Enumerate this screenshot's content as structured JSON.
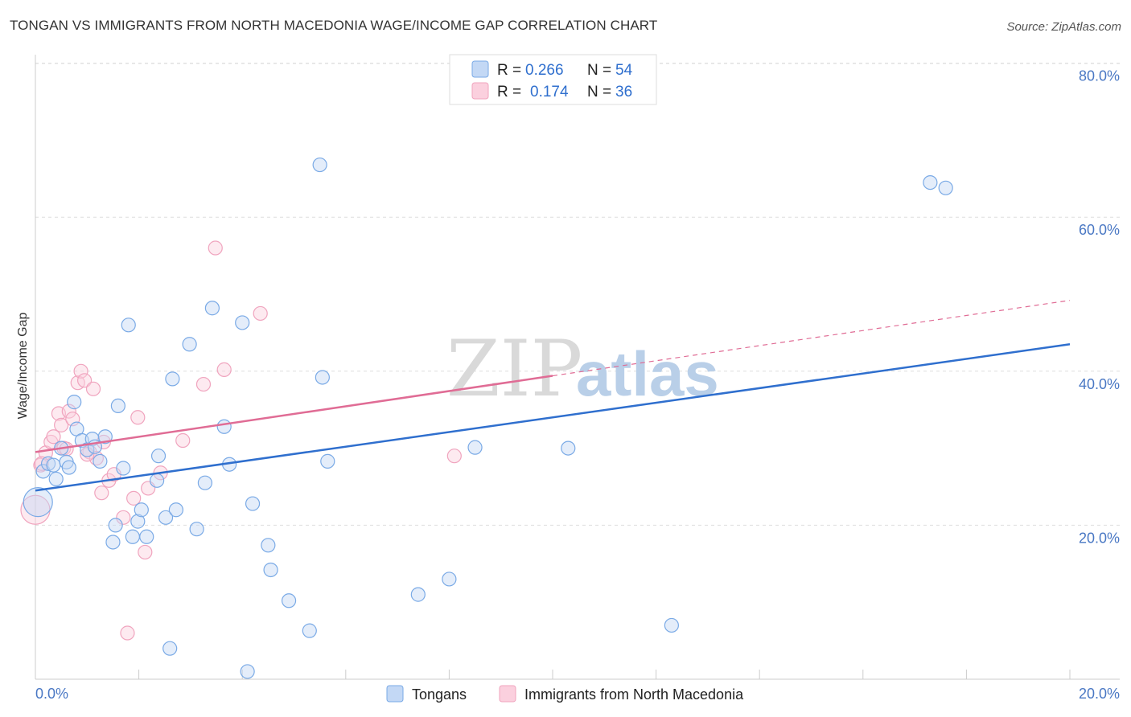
{
  "title": "TONGAN VS IMMIGRANTS FROM NORTH MACEDONIA WAGE/INCOME GAP CORRELATION CHART",
  "source": "Source: ZipAtlas.com",
  "watermark": {
    "zip": "ZIP",
    "atlas": "atlas"
  },
  "colors": {
    "blue": "#7aaae6",
    "blue_line": "#2f6fce",
    "pink": "#f0a4be",
    "pink_line": "#e06c95",
    "grid": "#dddddd",
    "tick_text": "#4a78c4"
  },
  "legend": {
    "rows": [
      {
        "r_label": "R =",
        "r_value": "0.266",
        "n_label": "N =",
        "n_value": "54"
      },
      {
        "r_label": "R =",
        "r_value": "0.174",
        "n_label": "N =",
        "n_value": "36"
      }
    ]
  },
  "bottom_legend": {
    "series1": "Tongans",
    "series2": "Immigrants from North Macedonia"
  },
  "chart_data": {
    "type": "scatter",
    "title": "TONGAN VS IMMIGRANTS FROM NORTH MACEDONIA WAGE/INCOME GAP CORRELATION CHART",
    "xlabel": "",
    "ylabel": "Wage/Income Gap",
    "xlim": [
      0,
      20
    ],
    "ylim": [
      0,
      80
    ],
    "x_tick_labels": [
      "0.0%",
      "20.0%"
    ],
    "y_ticks": [
      20,
      40,
      60,
      80
    ],
    "y_tick_labels": [
      "20.0%",
      "40.0%",
      "60.0%",
      "80.0%"
    ],
    "series": [
      {
        "name": "Tongans",
        "r": 0.266,
        "n": 54,
        "trend": {
          "x0": 0,
          "y0": 24.5,
          "x1": 20,
          "y1": 43.5
        },
        "points": [
          [
            0.05,
            23.0
          ],
          [
            0.15,
            27.0
          ],
          [
            0.25,
            28.0
          ],
          [
            0.35,
            27.8
          ],
          [
            0.4,
            26.0
          ],
          [
            0.5,
            30.0
          ],
          [
            0.6,
            28.2
          ],
          [
            0.65,
            27.5
          ],
          [
            0.75,
            36.0
          ],
          [
            0.8,
            32.5
          ],
          [
            0.9,
            31.0
          ],
          [
            1.0,
            29.8
          ],
          [
            1.1,
            31.2
          ],
          [
            1.15,
            30.2
          ],
          [
            1.25,
            28.3
          ],
          [
            1.35,
            31.5
          ],
          [
            1.5,
            17.8
          ],
          [
            1.55,
            20.0
          ],
          [
            1.6,
            35.5
          ],
          [
            1.7,
            27.4
          ],
          [
            1.8,
            46.0
          ],
          [
            1.88,
            18.5
          ],
          [
            1.98,
            20.5
          ],
          [
            2.05,
            22.0
          ],
          [
            2.15,
            18.5
          ],
          [
            2.35,
            25.8
          ],
          [
            2.38,
            29.0
          ],
          [
            2.52,
            21.0
          ],
          [
            2.6,
            4.0
          ],
          [
            2.65,
            39.0
          ],
          [
            2.72,
            22.0
          ],
          [
            2.98,
            43.5
          ],
          [
            3.12,
            19.5
          ],
          [
            3.28,
            25.5
          ],
          [
            3.42,
            48.2
          ],
          [
            3.65,
            32.8
          ],
          [
            3.75,
            27.9
          ],
          [
            4.0,
            46.3
          ],
          [
            4.1,
            1.0
          ],
          [
            4.2,
            22.8
          ],
          [
            4.5,
            17.4
          ],
          [
            4.55,
            14.2
          ],
          [
            4.9,
            10.2
          ],
          [
            5.3,
            6.3
          ],
          [
            5.5,
            66.8
          ],
          [
            5.55,
            39.2
          ],
          [
            5.65,
            28.3
          ],
          [
            7.4,
            11.0
          ],
          [
            8.0,
            13.0
          ],
          [
            8.5,
            30.1
          ],
          [
            10.3,
            30.0
          ],
          [
            12.3,
            7.0
          ],
          [
            17.3,
            64.5
          ],
          [
            17.6,
            63.8
          ]
        ]
      },
      {
        "name": "Immigrants from North Macedonia",
        "r": 0.174,
        "n": 36,
        "trend": {
          "x0": 0,
          "y0": 29.5,
          "x1": 10,
          "y1": 39.4,
          "dash_x1": 20,
          "dash_y1": 49.2
        },
        "points": [
          [
            0.0,
            22.0
          ],
          [
            0.1,
            27.8
          ],
          [
            0.2,
            29.4
          ],
          [
            0.3,
            30.8
          ],
          [
            0.35,
            31.5
          ],
          [
            0.45,
            34.5
          ],
          [
            0.5,
            33.0
          ],
          [
            0.55,
            30.0
          ],
          [
            0.65,
            34.8
          ],
          [
            0.72,
            33.8
          ],
          [
            0.82,
            38.5
          ],
          [
            0.88,
            40.0
          ],
          [
            0.95,
            38.8
          ],
          [
            1.05,
            29.5
          ],
          [
            1.12,
            37.7
          ],
          [
            1.18,
            28.7
          ],
          [
            1.28,
            24.2
          ],
          [
            1.32,
            30.8
          ],
          [
            1.42,
            25.8
          ],
          [
            1.52,
            26.6
          ],
          [
            1.7,
            21.0
          ],
          [
            1.78,
            6.0
          ],
          [
            1.9,
            23.5
          ],
          [
            1.98,
            34.0
          ],
          [
            2.12,
            16.5
          ],
          [
            2.18,
            24.8
          ],
          [
            2.42,
            26.8
          ],
          [
            2.85,
            31.0
          ],
          [
            3.25,
            38.3
          ],
          [
            3.48,
            56.0
          ],
          [
            3.65,
            40.2
          ],
          [
            4.35,
            47.5
          ],
          [
            8.1,
            29.0
          ],
          [
            0.12,
            28.0
          ],
          [
            0.6,
            29.9
          ],
          [
            1.0,
            29.2
          ]
        ]
      }
    ]
  }
}
